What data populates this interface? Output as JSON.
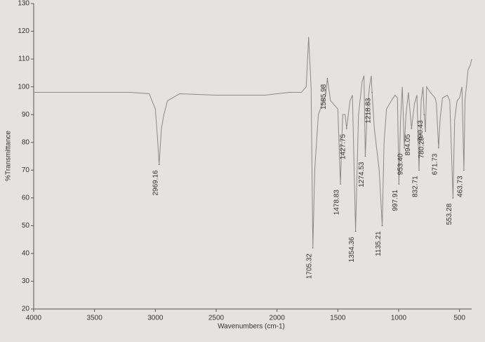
{
  "chart_data": {
    "type": "line",
    "x_label": "Wavenumbers (cm-1)",
    "y_label": "%Transmittance",
    "xlim": [
      4000,
      400
    ],
    "ylim": [
      20,
      130
    ],
    "xticks": [
      4000,
      3500,
      3000,
      2500,
      2000,
      1500,
      1000,
      500
    ],
    "yticks": [
      20,
      30,
      40,
      50,
      60,
      70,
      80,
      90,
      100,
      110,
      120,
      130
    ],
    "series": [
      {
        "color": "#8a8a86",
        "x": [
          4000,
          3800,
          3500,
          3200,
          3050,
          3000,
          2980,
          2969.16,
          2950,
          2930,
          2900,
          2800,
          2500,
          2300,
          2100,
          2000,
          1900,
          1800,
          1760,
          1740,
          1720,
          1705.32,
          1690,
          1660,
          1620,
          1600,
          1585.98,
          1560,
          1520,
          1500,
          1478.83,
          1460,
          1440,
          1427.75,
          1400,
          1380,
          1354.36,
          1330,
          1300,
          1285,
          1274.53,
          1260,
          1240,
          1225,
          1218.83,
          1200,
          1160,
          1135.21,
          1120,
          1100,
          1060,
          1030,
          1010,
          997.91,
          985,
          970,
          953.4,
          940,
          920,
          894.05,
          870,
          850,
          832.71,
          815,
          800,
          790.43,
          780.29,
          770,
          740,
          700,
          690,
          671.73,
          660,
          640,
          600,
          580,
          553.28,
          540,
          520,
          500,
          480,
          463.73,
          455,
          430,
          410,
          400
        ],
        "values": [
          98,
          98,
          98,
          98,
          97.5,
          92,
          80,
          72,
          85,
          90,
          95,
          97.5,
          97,
          97,
          97,
          97.5,
          98,
          98,
          100,
          118,
          100,
          42,
          70,
          90,
          95,
          97,
          103,
          95,
          93,
          92,
          65,
          90,
          90,
          85,
          95,
          97,
          48,
          90,
          102,
          104,
          75,
          90,
          100,
          104,
          98,
          85,
          70,
          50,
          80,
          92,
          95,
          97,
          96,
          65,
          88,
          100,
          78,
          90,
          98,
          85,
          94,
          97,
          70,
          95,
          100,
          90,
          84,
          100,
          98,
          96,
          94,
          78,
          88,
          96,
          97,
          95,
          60,
          88,
          95,
          96,
          100,
          70,
          95,
          106,
          108,
          110
        ]
      }
    ],
    "annotations": {
      "x": [
        2969.16,
        1705.32,
        1585.98,
        1478.83,
        1427.75,
        1354.36,
        1274.53,
        1218.83,
        1135.21,
        997.91,
        953.4,
        894.05,
        832.71,
        790.43,
        780.29,
        671.73,
        553.28,
        463.73
      ],
      "y": [
        72,
        42,
        103,
        65,
        85,
        48,
        75,
        98,
        50,
        65,
        78,
        85,
        70,
        90,
        84,
        78,
        60,
        70
      ],
      "value_labels": [
        "2969.16",
        "1705.32",
        "1585.98",
        "1478.83",
        "1427.75",
        "1354.36",
        "1274.53",
        "1218.83",
        "1135.21",
        "997.91",
        "953.40",
        "894.05",
        "832.71",
        "790.43",
        "780.29",
        "671.73",
        "553.28",
        "463.73"
      ]
    }
  }
}
